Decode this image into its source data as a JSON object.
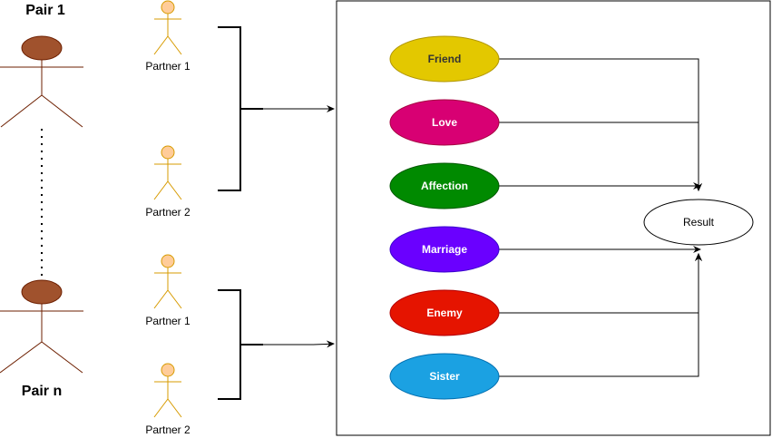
{
  "pairs": {
    "first": "Pair 1",
    "last": "Pair n"
  },
  "partners": {
    "p1_top": "Partner 1",
    "p2_top": "Partner 2",
    "p1_bottom": "Partner 1",
    "p2_bottom": "Partner 2"
  },
  "options": [
    {
      "label": "Friend",
      "color": "#e3c800",
      "text_color": "#333333"
    },
    {
      "label": "Love",
      "color": "#d80073",
      "text_color": "#ffffff"
    },
    {
      "label": "Affection",
      "color": "#008a00",
      "text_color": "#ffffff"
    },
    {
      "label": "Marriage",
      "color": "#6a00ff",
      "text_color": "#ffffff"
    },
    {
      "label": "Enemy",
      "color": "#e51400",
      "text_color": "#ffffff"
    },
    {
      "label": "Sister",
      "color": "#1ba1e2",
      "text_color": "#ffffff"
    }
  ],
  "result": {
    "label": "Result"
  },
  "colors": {
    "pair_head": "#a0522d",
    "pair_stroke": "#6d1f00",
    "partner_fill": "#ffcc99",
    "partner_stroke": "#d79b00",
    "line": "#000000"
  }
}
